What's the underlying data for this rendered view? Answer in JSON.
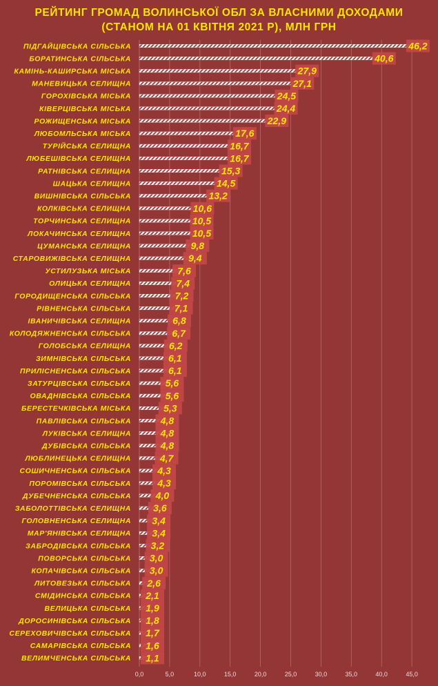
{
  "title_line1": "РЕЙТИНГ ГРОМАД ВОЛИНСЬКОЇ ОБЛ ЗА ВЛАСНИМИ ДОХОДАМИ",
  "title_line2": "(СТАНОМ НА 01 КВІТНЯ 2021 Р), МЛН ГРН",
  "colors": {
    "background": "#943636",
    "text": "#ffe600",
    "label_box": "#c24848",
    "bar_stripe": "#ffffff"
  },
  "chart_data": {
    "type": "bar",
    "orientation": "horizontal",
    "title": "РЕЙТИНГ ГРОМАД ВОЛИНСЬКОЇ ОБЛ ЗА ВЛАСНИМИ ДОХОДАМИ (СТАНОМ НА 01 КВІТНЯ 2021 Р), МЛН ГРН",
    "categories": [
      "ПІДГАЙЦІВСЬКА СІЛЬСЬКА",
      "БОРАТИНСЬКА СІЛЬСЬКА",
      "КАМІНЬ-КАШИРСЬКА МІСЬКА",
      "МАНЕВИЦЬКА СЕЛИЩНА",
      "ГОРОХІВСЬКА МІСЬКА",
      "КІВЕРЦІВСЬКА МІСЬКА",
      "РОЖИЩЕНСЬКА МІСЬКА",
      "ЛЮБОМЛЬСЬКА МІСЬКА",
      "ТУРІЙСЬКА СЕЛИЩНА",
      "ЛЮБЕШІВСЬКА СЕЛИЩНА",
      "РАТНІВСЬКА СЕЛИЩНА",
      "ШАЦЬКА СЕЛИЩНА",
      "ВИШНІВСЬКА СІЛЬСЬКА",
      "КОЛКІВСЬКА СЕЛИЩНА",
      "ТОРЧИНСЬКА СЕЛИЩНА",
      "ЛОКАЧИНСЬКА СЕЛИЩНА",
      "ЦУМАНСЬКА СЕЛИЩНА",
      "СТАРОВИЖІВСЬКА СЕЛИЩНА",
      "УСТИЛУЗЬКА МІСЬКА",
      "ОЛИЦЬКА СЕЛИЩНА",
      "ГОРОДИЩЕНСЬКА СІЛЬСЬКА",
      "РІВНЕНСЬКА СІЛЬСЬКА",
      "ІВАНИЧІВСЬКА СЕЛИЩНА",
      "КОЛОДЯЖНЕНСЬКА СІЛЬСЬКА",
      "ГОЛОБСЬКА СЕЛИЩНА",
      "ЗИМНІВСЬКА СІЛЬСЬКА",
      "ПРИЛІСНЕНСЬКА СІЛЬСЬКА",
      "ЗАТУРЦІВСЬКА СІЛЬСЬКА",
      "ОВАДНІВСЬКА СІЛЬСЬКА",
      "БЕРЕСТЕЧКІВСЬКА МІСЬКА",
      "ПАВЛІВСЬКА СІЛЬСЬКА",
      "ЛУКІВСЬКА СЕЛИЩНА",
      "ДУБІВСЬКА СІЛЬСЬКА",
      "ЛЮБЛИНЕЦЬКА СЕЛИЩНА",
      "СОШИЧНЕНСЬКА СІЛЬСЬКА",
      "ПОРОМІВСЬКА СІЛЬСЬКА",
      "ДУБЕЧНЕНСЬКА СІЛЬСЬКА",
      "ЗАБОЛОТТІВСЬКА СЕЛИЩНА",
      "ГОЛОВНЕНСЬКА СЕЛИЩНА",
      "МАР'ЯНІВСЬКА СЕЛИЩНА",
      "ЗАБРОДІВСЬКА СІЛЬСЬКА",
      "ПОВОРСЬКА СІЛЬСЬКА",
      "КОПАЧІВСЬКА СІЛЬСЬКА",
      "ЛИТОВЕЗЬКА СІЛЬСЬКА",
      "СМІДИНСЬКА СІЛЬСЬКА",
      "ВЕЛИЦЬКА СІЛЬСЬКА",
      "ДОРОСИНІВСЬКА СІЛЬСЬКА",
      "СЕРЕХОВИЧІВСЬКА СІЛЬСЬКА",
      "САМАРІВСЬКА СІЛЬСЬКА",
      "ВЕЛИМЧЕНСЬКА СІЛЬСЬКА"
    ],
    "values": [
      46.2,
      40.6,
      27.9,
      27.1,
      24.5,
      24.4,
      22.9,
      17.6,
      16.7,
      16.7,
      15.3,
      14.5,
      13.2,
      10.6,
      10.5,
      10.5,
      9.8,
      9.4,
      7.6,
      7.4,
      7.2,
      7.1,
      6.8,
      6.7,
      6.2,
      6.1,
      6.1,
      5.6,
      5.6,
      5.3,
      4.8,
      4.8,
      4.8,
      4.7,
      4.3,
      4.3,
      4.0,
      3.6,
      3.4,
      3.4,
      3.2,
      3.0,
      3.0,
      2.6,
      2.1,
      1.9,
      1.8,
      1.7,
      1.6,
      1.1
    ],
    "value_labels": [
      "46,2",
      "40,6",
      "27,9",
      "27,1",
      "24,5",
      "24,4",
      "22,9",
      "17,6",
      "16,7",
      "16,7",
      "15,3",
      "14,5",
      "13,2",
      "10,6",
      "10,5",
      "10,5",
      "9,8",
      "9,4",
      "7,6",
      "7,4",
      "7,2",
      "7,1",
      "6,8",
      "6,7",
      "6,2",
      "6,1",
      "6,1",
      "5,6",
      "5,6",
      "5,3",
      "4,8",
      "4,8",
      "4,8",
      "4,7",
      "4,3",
      "4,3",
      "4,0",
      "3,6",
      "3,4",
      "3,4",
      "3,2",
      "3,0",
      "3,0",
      "2,6",
      "2,1",
      "1,9",
      "1,8",
      "1,7",
      "1,6",
      "1,1"
    ],
    "xlim": [
      0,
      50
    ],
    "x_ticks": [
      0,
      5,
      10,
      15,
      20,
      25,
      30,
      35,
      40,
      45
    ],
    "x_tick_labels": [
      "0,0",
      "5,0",
      "10,0",
      "15,0",
      "20,0",
      "25,0",
      "30,0",
      "35,0",
      "40,0",
      "45,0"
    ],
    "grid": "vertical",
    "legend": "none"
  }
}
